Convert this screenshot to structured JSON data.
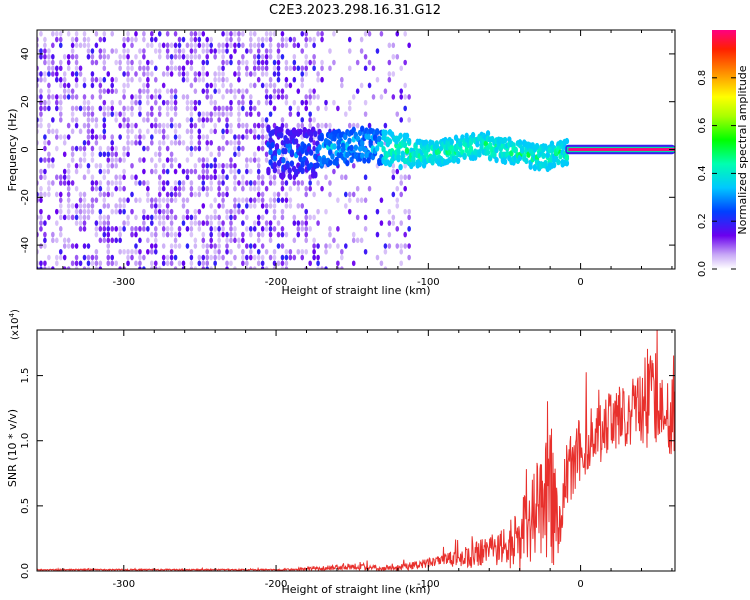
{
  "title": "C2E3.2023.298.16.31.G12",
  "chart_data": [
    {
      "type": "heatmap",
      "name": "spectrogram",
      "xlabel": "Height of straight line (km)",
      "ylabel": "Frequency (Hz)",
      "xlim": [
        -357,
        62
      ],
      "ylim": [
        -50,
        50
      ],
      "xticks": [
        -300,
        -200,
        -100,
        0
      ],
      "yticks": [
        -40,
        -20,
        0,
        20,
        40
      ],
      "xtick_labels": [
        "-300",
        "-200",
        "-100",
        "0"
      ],
      "ytick_labels": [
        "-40",
        "-20",
        "0",
        "20",
        "40"
      ],
      "colorbar": {
        "label": "Normalized spectral amplitude",
        "range": [
          0,
          1
        ],
        "ticks": [
          0.0,
          0.2,
          0.4,
          0.6,
          0.8
        ],
        "tick_labels": [
          "0.0",
          "0.2",
          "0.4",
          "0.6",
          "0.8"
        ]
      },
      "dominant_band": {
        "center_hz": 0,
        "halfwidth_hz": 2,
        "start_km": -10,
        "end_km": 62,
        "amplitude": 1.0
      }
    },
    {
      "type": "line",
      "name": "snr",
      "color": "#e8302c",
      "xlabel": "Height of straight line (km)",
      "ylabel": "SNR (10 * v/v)",
      "scale_label": "(x10",
      "scale_exp": "4",
      "scale_close": ")",
      "xlim": [
        -357,
        62
      ],
      "ylim": [
        0,
        1.85
      ],
      "xticks": [
        -300,
        -200,
        -100,
        0
      ],
      "yticks": [
        0.0,
        0.5,
        1.0,
        1.5
      ],
      "xtick_labels": [
        "-300",
        "-200",
        "-100",
        "0"
      ],
      "ytick_labels": [
        "0.0",
        "0.5",
        "1.0",
        "1.5"
      ],
      "envelope": {
        "x": [
          -357,
          -200,
          -170,
          -150,
          -130,
          -110,
          -90,
          -70,
          -50,
          -40,
          -30,
          -22,
          -18,
          -15,
          -10,
          0,
          10,
          20,
          30,
          40,
          45,
          50,
          55,
          60,
          62
        ],
        "mean": [
          0.01,
          0.01,
          0.02,
          0.04,
          0.02,
          0.04,
          0.08,
          0.12,
          0.18,
          0.25,
          0.45,
          0.55,
          0.6,
          0.3,
          0.7,
          0.95,
          1.05,
          1.15,
          1.2,
          1.25,
          1.35,
          1.3,
          1.35,
          1.25,
          1.3
        ],
        "amp": [
          0.005,
          0.005,
          0.015,
          0.03,
          0.02,
          0.03,
          0.05,
          0.1,
          0.15,
          0.25,
          0.35,
          0.45,
          0.75,
          0.25,
          0.3,
          0.25,
          0.25,
          0.25,
          0.25,
          0.3,
          0.45,
          0.35,
          0.35,
          0.4,
          0.4
        ]
      }
    }
  ]
}
